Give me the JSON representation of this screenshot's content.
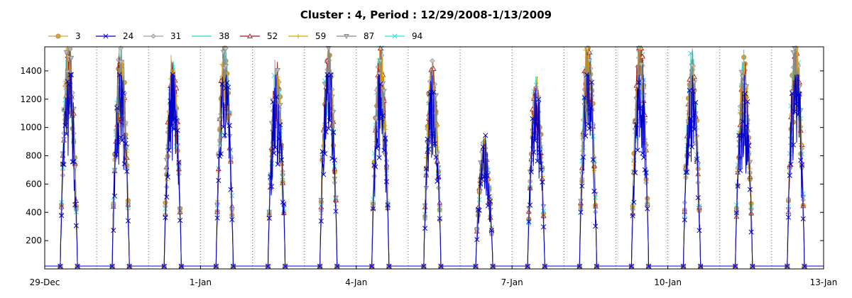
{
  "chart_data": {
    "type": "line",
    "title": "Cluster : 4, Period : 12/29/2008-1/13/2009",
    "xlabel": "",
    "ylabel": "",
    "x_range_days": [
      0,
      15
    ],
    "ylim": [
      0,
      1570
    ],
    "y_ticks": [
      200,
      400,
      600,
      800,
      1000,
      1200,
      1400
    ],
    "x_ticks": [
      {
        "day": 0,
        "label": "29-Dec"
      },
      {
        "day": 3,
        "label": "1-Jan"
      },
      {
        "day": 6,
        "label": "4-Jan"
      },
      {
        "day": 9,
        "label": "7-Jan"
      },
      {
        "day": 12,
        "label": "10-Jan"
      },
      {
        "day": 15,
        "label": "13-Jan"
      }
    ],
    "x_grid_days": [
      1,
      2,
      3,
      4,
      5,
      6,
      7,
      8,
      9,
      10,
      11,
      12,
      13,
      14
    ],
    "grid": true,
    "legend_position": "top-left",
    "day_peaks": [
      1520,
      1500,
      1430,
      1500,
      1380,
      1500,
      1520,
      1380,
      880,
      1280,
      1560,
      1550,
      1430,
      1400,
      1560
    ],
    "series": [
      {
        "name": "3",
        "color": "#D4A040",
        "marker": "circle"
      },
      {
        "name": "24",
        "color": "#0000CC",
        "marker": "x"
      },
      {
        "name": "31",
        "color": "#A0A0A0",
        "marker": "diamond"
      },
      {
        "name": "38",
        "color": "#20D0D0",
        "marker": "none"
      },
      {
        "name": "52",
        "color": "#A01818",
        "marker": "triangle"
      },
      {
        "name": "59",
        "color": "#E8A000",
        "marker": "plus"
      },
      {
        "name": "87",
        "color": "#888888",
        "marker": "triangle-down"
      },
      {
        "name": "94",
        "color": "#30E0E0",
        "marker": "x"
      }
    ]
  }
}
